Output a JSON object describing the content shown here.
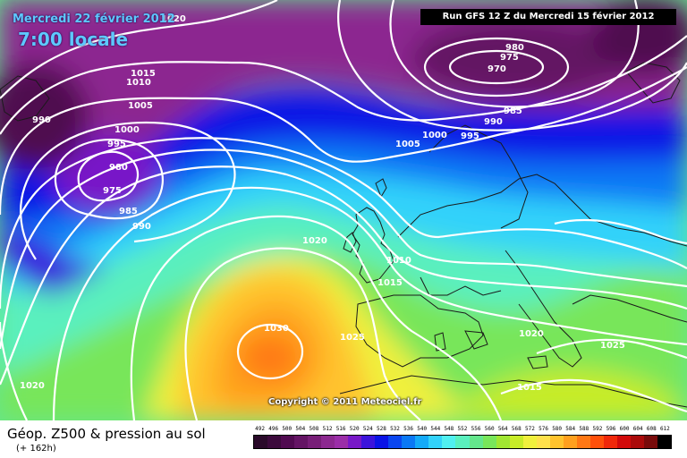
{
  "header": {
    "date": "Mercredi 22 février 2012",
    "time": "7:00 locale",
    "run": "Run GFS 12 Z du Mercredi 15 février 2012"
  },
  "copyright": "Copyright © 2011 Meteociel.fr",
  "legend": {
    "title": "Géop. Z500 & pression au sol",
    "subtitle": "(+ 162h)",
    "scale": [
      {
        "value": "492",
        "color": "#2a0a2a"
      },
      {
        "value": "496",
        "color": "#3c0a3c"
      },
      {
        "value": "500",
        "color": "#500a50"
      },
      {
        "value": "504",
        "color": "#641464"
      },
      {
        "value": "508",
        "color": "#781e78"
      },
      {
        "value": "512",
        "color": "#8c2890"
      },
      {
        "value": "516",
        "color": "#9b2ea8"
      },
      {
        "value": "520",
        "color": "#7818c8"
      },
      {
        "value": "524",
        "color": "#3c14dc"
      },
      {
        "value": "528",
        "color": "#0a14e6"
      },
      {
        "value": "532",
        "color": "#0a46f0"
      },
      {
        "value": "536",
        "color": "#0a78f5"
      },
      {
        "value": "540",
        "color": "#14aaf8"
      },
      {
        "value": "544",
        "color": "#32d2fa"
      },
      {
        "value": "548",
        "color": "#50f0f0"
      },
      {
        "value": "552",
        "color": "#5af0be"
      },
      {
        "value": "556",
        "color": "#64e68c"
      },
      {
        "value": "560",
        "color": "#78e65a"
      },
      {
        "value": "564",
        "color": "#a0e632"
      },
      {
        "value": "568",
        "color": "#c8ec28"
      },
      {
        "value": "572",
        "color": "#f0f03c"
      },
      {
        "value": "576",
        "color": "#ffe14b"
      },
      {
        "value": "580",
        "color": "#ffc32d"
      },
      {
        "value": "584",
        "color": "#ffa01e"
      },
      {
        "value": "588",
        "color": "#ff7814"
      },
      {
        "value": "592",
        "color": "#ff500a"
      },
      {
        "value": "596",
        "color": "#f0280a"
      },
      {
        "value": "600",
        "color": "#d20a0a"
      },
      {
        "value": "604",
        "color": "#aa0a0a"
      },
      {
        "value": "608",
        "color": "#780a0a"
      },
      {
        "value": "612",
        "color": "#000000"
      }
    ]
  },
  "isobar_labels": [
    {
      "text": "1015"
    },
    {
      "text": "1010"
    },
    {
      "text": "1005"
    },
    {
      "text": "990"
    },
    {
      "text": "1000"
    },
    {
      "text": "995"
    },
    {
      "text": "980"
    },
    {
      "text": "975"
    },
    {
      "text": "985"
    },
    {
      "text": "990"
    },
    {
      "text": "980"
    },
    {
      "text": "975"
    },
    {
      "text": "970"
    },
    {
      "text": "985"
    },
    {
      "text": "990"
    },
    {
      "text": "995"
    },
    {
      "text": "1000"
    },
    {
      "text": "1005"
    },
    {
      "text": "1020"
    },
    {
      "text": "1010"
    },
    {
      "text": "1015"
    },
    {
      "text": "1030"
    },
    {
      "text": "1025"
    },
    {
      "text": "1020"
    },
    {
      "text": "1025"
    },
    {
      "text": "1015"
    },
    {
      "text": "1020"
    },
    {
      "text": "1020"
    }
  ],
  "colors": {
    "isobar": "#ffffff",
    "coast": "#1a1a1a",
    "header_text": "#5ec8ff"
  }
}
